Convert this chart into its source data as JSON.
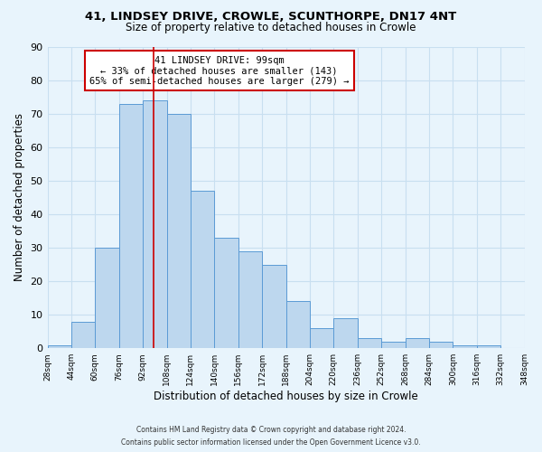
{
  "title1": "41, LINDSEY DRIVE, CROWLE, SCUNTHORPE, DN17 4NT",
  "title2": "Size of property relative to detached houses in Crowle",
  "xlabel": "Distribution of detached houses by size in Crowle",
  "ylabel": "Number of detached properties",
  "bar_left_edges": [
    28,
    44,
    60,
    76,
    92,
    108,
    124,
    140,
    156,
    172,
    188,
    204,
    220,
    236,
    252,
    268,
    284,
    300,
    316,
    332
  ],
  "bar_heights": [
    1,
    8,
    30,
    73,
    74,
    70,
    47,
    33,
    29,
    25,
    14,
    6,
    9,
    3,
    2,
    3,
    2,
    1,
    1,
    0
  ],
  "bin_width": 16,
  "bar_color": "#bdd7ee",
  "bar_edge_color": "#5b9bd5",
  "property_line_x": 99,
  "property_line_color": "#cc0000",
  "annotation_title": "41 LINDSEY DRIVE: 99sqm",
  "annotation_line1": "← 33% of detached houses are smaller (143)",
  "annotation_line2": "65% of semi-detached houses are larger (279) →",
  "annotation_box_color": "#ffffff",
  "annotation_box_edge": "#cc0000",
  "tick_labels": [
    "28sqm",
    "44sqm",
    "60sqm",
    "76sqm",
    "92sqm",
    "108sqm",
    "124sqm",
    "140sqm",
    "156sqm",
    "172sqm",
    "188sqm",
    "204sqm",
    "220sqm",
    "236sqm",
    "252sqm",
    "268sqm",
    "284sqm",
    "300sqm",
    "316sqm",
    "332sqm",
    "348sqm"
  ],
  "ylim": [
    0,
    90
  ],
  "yticks": [
    0,
    10,
    20,
    30,
    40,
    50,
    60,
    70,
    80,
    90
  ],
  "grid_color": "#c8dff0",
  "background_color": "#e8f4fc",
  "footer1": "Contains HM Land Registry data © Crown copyright and database right 2024.",
  "footer2": "Contains public sector information licensed under the Open Government Licence v3.0."
}
